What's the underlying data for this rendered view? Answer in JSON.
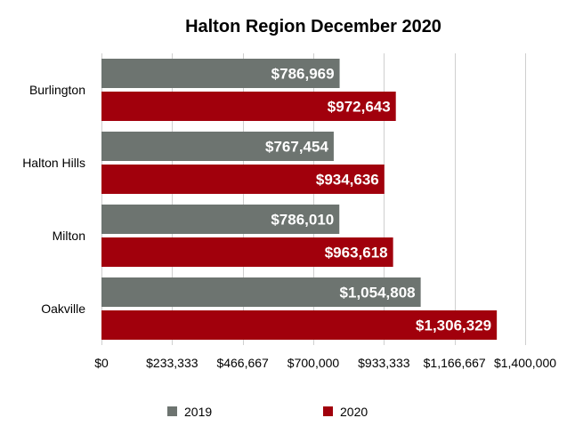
{
  "chart_data": {
    "type": "bar",
    "orientation": "horizontal",
    "title": "Halton Region December 2020",
    "categories": [
      "Burlington",
      "Halton Hills",
      "Milton",
      "Oakville"
    ],
    "series": [
      {
        "name": "2019",
        "color": "#6d7470",
        "values": [
          786969,
          767454,
          786010,
          1054808
        ],
        "labels": [
          "$786,969",
          "$767,454",
          "$786,010",
          "$1,054,808"
        ]
      },
      {
        "name": "2020",
        "color": "#a1000c",
        "values": [
          972643,
          934636,
          963618,
          1306329
        ],
        "labels": [
          "$972,643",
          "$934,636",
          "$963,618",
          "$1,306,329"
        ]
      }
    ],
    "xlim": [
      0,
      1400000
    ],
    "xticks": [
      0,
      233333,
      466667,
      700000,
      933333,
      1166667,
      1400000
    ],
    "xtick_labels": [
      "$0",
      "$233,333",
      "$466,667",
      "$700,000",
      "$933,333",
      "$1,166,667",
      "$1,400,000"
    ],
    "grid": true,
    "legend_position": "bottom"
  }
}
